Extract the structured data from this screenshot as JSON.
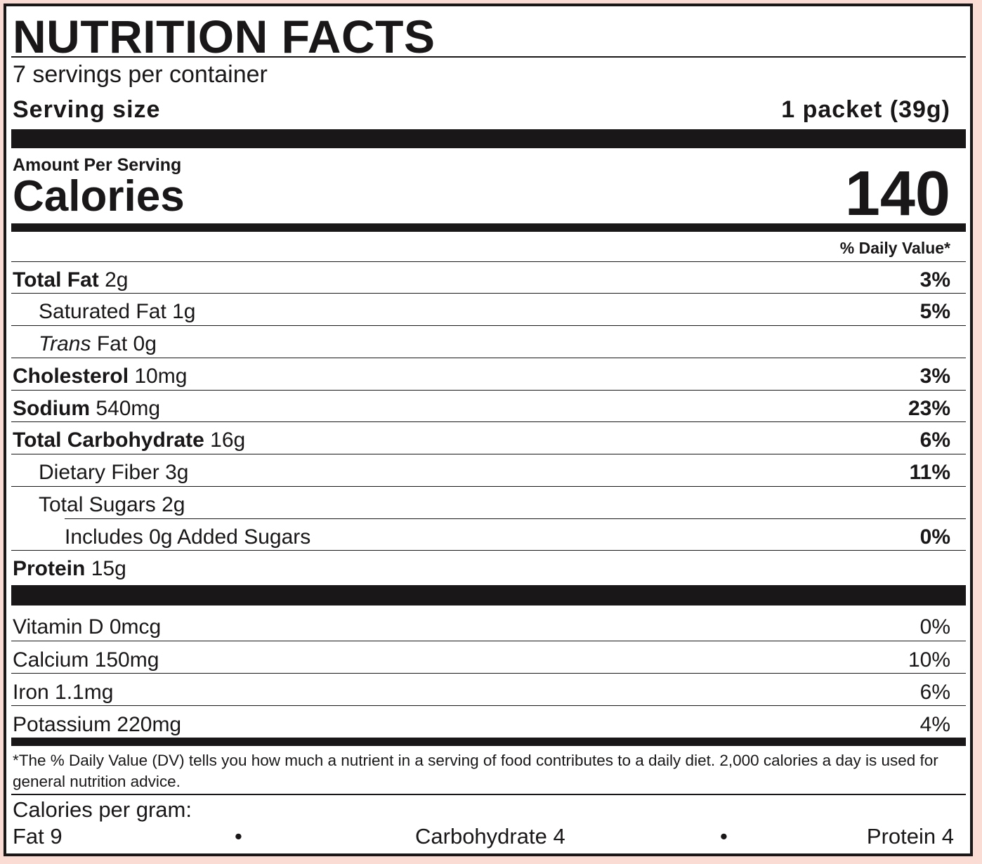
{
  "title": "NUTRITION FACTS",
  "servings_per_container": "7 servings per container",
  "serving_size_label": "Serving size",
  "serving_size_value": "1 packet (39g)",
  "amount_per_serving": "Amount Per Serving",
  "calories_label": "Calories",
  "calories_value": "140",
  "daily_value_header": "% Daily Value*",
  "nutrients": [
    {
      "name": "Total Fat",
      "amount": "2g",
      "dv": "3%"
    },
    {
      "name": "Saturated Fat",
      "amount": "1g",
      "dv": "5%"
    },
    {
      "name": "Trans",
      "name_suffix": "Fat",
      "amount": "0g",
      "dv": ""
    },
    {
      "name": "Cholesterol",
      "amount": "10mg",
      "dv": "3%"
    },
    {
      "name": "Sodium",
      "amount": "540mg",
      "dv": "23%"
    },
    {
      "name": "Total Carbohydrate",
      "amount": "16g",
      "dv": "6%"
    },
    {
      "name": "Dietary Fiber",
      "amount": "3g",
      "dv": "11%"
    },
    {
      "name": "Total Sugars",
      "amount": "2g",
      "dv": ""
    },
    {
      "name": "Includes 0g Added Sugars",
      "amount": "",
      "dv": "0%"
    },
    {
      "name": "Protein",
      "amount": "15g",
      "dv": ""
    }
  ],
  "vitamins": [
    {
      "name": "Vitamin D 0mcg",
      "dv": "0%"
    },
    {
      "name": "Calcium 150mg",
      "dv": "10%"
    },
    {
      "name": "Iron 1.1mg",
      "dv": "6%"
    },
    {
      "name": "Potassium 220mg",
      "dv": "4%"
    }
  ],
  "footnote": "*The % Daily Value (DV) tells you how much a nutrient in a serving of food contributes to a daily diet. 2,000 calories a day is used for general nutrition advice.",
  "calories_per_gram": {
    "label": "Calories per gram:",
    "fat": "Fat 9",
    "carbohydrate": "Carbohydrate 4",
    "protein": "Protein 4",
    "separator": "•"
  }
}
